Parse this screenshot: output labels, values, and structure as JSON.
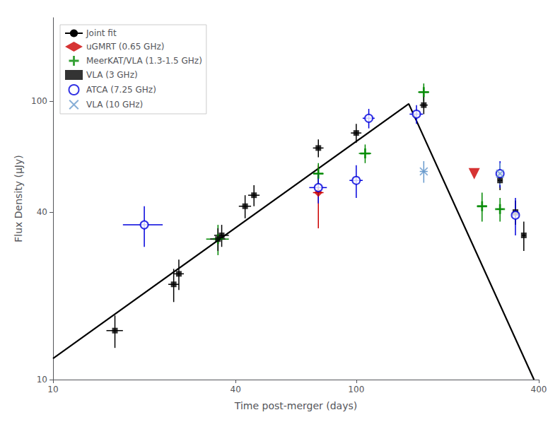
{
  "chart_data": {
    "type": "scatter",
    "xlabel": "Time post-merger (days)",
    "ylabel": "Flux Density (μJy)",
    "log": true,
    "xlim": [
      10,
      400
    ],
    "ylim": [
      10,
      200
    ],
    "xticks": [
      10,
      40,
      100,
      400
    ],
    "yticks": [
      10,
      40,
      100
    ],
    "grid": false,
    "legend": "upper left",
    "series": [
      {
        "name": "Joint fit",
        "type": "line",
        "color": "#000000",
        "line_style": "solid",
        "x": [
          10,
          149,
          385.65
        ],
        "values": [
          11.9163,
          98,
          10
        ]
      },
      {
        "name": "uGMRT (0.65 GHz)",
        "type": "scatter",
        "color": "#cc0000",
        "marker": "diamond",
        "x": [
          75
        ],
        "values": [
          47
        ],
        "yerr_lo": [
          12
        ],
        "yerr_hi": [
          12
        ],
        "xerr": [
          3
        ],
        "upper_limits": {
          "x": [
            245
          ],
          "values": [
            55
          ],
          "marker": "triangle-down"
        }
      },
      {
        "name": "MeerKAT/VLA (1.3-1.5 GHz)",
        "type": "scatter",
        "color": "#008800",
        "marker": "plus",
        "x": [
          35,
          75,
          107,
          167,
          260,
          298
        ],
        "values": [
          32,
          55,
          65,
          108,
          42,
          41
        ],
        "yerr_lo": [
          4,
          5,
          5,
          8,
          5,
          4
        ],
        "yerr_hi": [
          4,
          5,
          5,
          8,
          5,
          4
        ],
        "xerr": [
          3,
          3,
          5,
          7,
          10,
          8
        ]
      },
      {
        "name": "VLA (3 GHz)",
        "type": "scatter",
        "color": "#000000",
        "marker": "square",
        "x": [
          16,
          25,
          26,
          35,
          36,
          43,
          46,
          75,
          100,
          167,
          298,
          335,
          357
        ],
        "values": [
          15,
          22,
          24,
          32,
          33,
          42,
          46,
          68,
          77,
          97,
          52,
          40,
          33
        ],
        "yerr_lo": [
          2,
          3,
          3,
          3,
          3,
          4,
          4,
          5,
          6,
          7,
          4,
          4,
          4
        ],
        "yerr_hi": [
          2,
          3,
          3,
          3,
          3,
          4,
          4,
          5,
          6,
          7,
          4,
          4,
          4
        ],
        "xerr": [
          1,
          1,
          1,
          2,
          2,
          2,
          2,
          3,
          4,
          5,
          5,
          5,
          5
        ]
      },
      {
        "name": "ATCA (7.25 GHz)",
        "type": "scatter",
        "color": "#0000dd",
        "marker": "circle_open",
        "x": [
          20,
          75,
          100,
          110,
          158,
          298,
          335
        ],
        "values": [
          36,
          49,
          52,
          87,
          90,
          55,
          39
        ],
        "yerr_lo": [
          6,
          6,
          7,
          7,
          7,
          6,
          6
        ],
        "yerr_hi": [
          6,
          6,
          7,
          7,
          7,
          6,
          6
        ],
        "xerr": [
          3,
          5,
          5,
          5,
          8,
          8,
          8
        ]
      },
      {
        "name": "VLA (10 GHz)",
        "type": "scatter",
        "color": "#6699cc",
        "marker": "x",
        "x": [
          167,
          298
        ],
        "values": [
          56,
          55
        ],
        "yerr_lo": [
          5,
          5
        ],
        "yerr_hi": [
          5,
          5
        ],
        "xerr": [
          5,
          8
        ]
      }
    ]
  }
}
